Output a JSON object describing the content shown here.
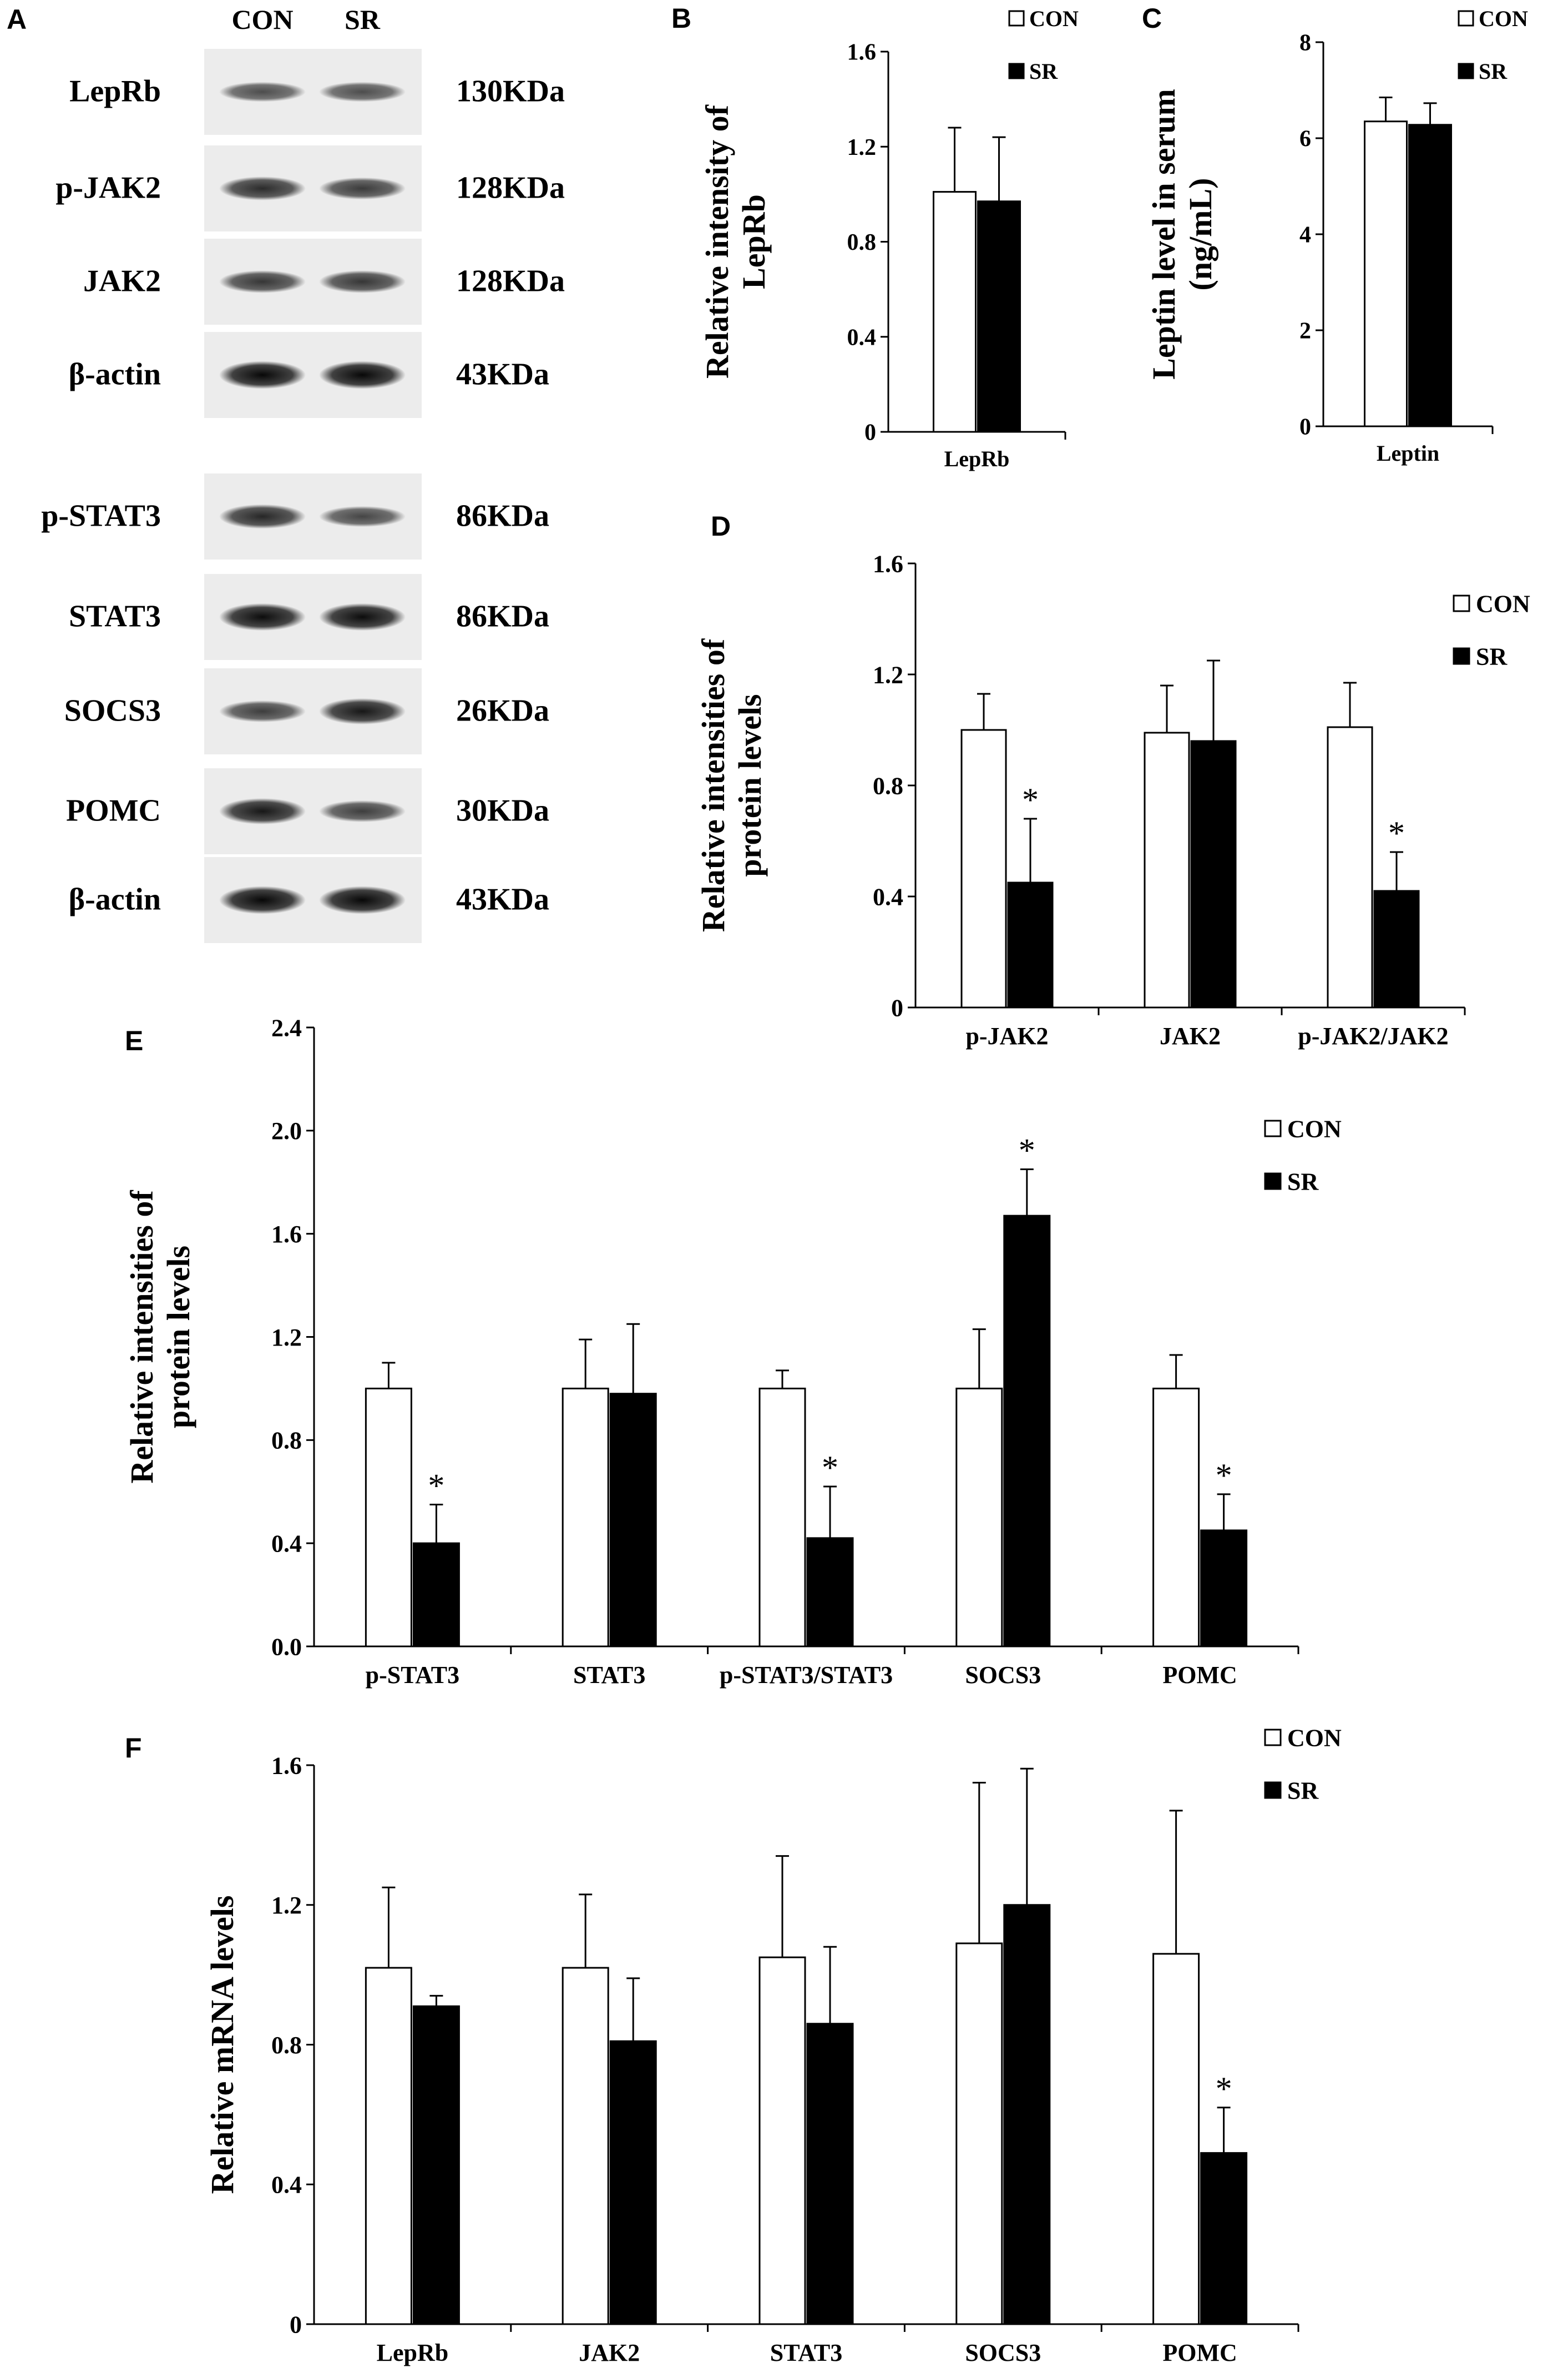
{
  "figure": {
    "panels": {
      "A": {
        "letter": "A",
        "lanes": [
          "CON",
          "SR"
        ],
        "strips": [
          {
            "protein": "LepRb",
            "size": "130KDa",
            "band_intensity": [
              0.5,
              0.5
            ]
          },
          {
            "protein": "p-JAK2",
            "size": "128KDa",
            "band_intensity": [
              0.72,
              0.62
            ]
          },
          {
            "protein": "JAK2",
            "size": "128KDa",
            "band_intensity": [
              0.65,
              0.65
            ]
          },
          {
            "protein": "β-actin",
            "size": "43KDa",
            "band_intensity": [
              0.95,
              0.95
            ]
          },
          {
            "protein": "p-STAT3",
            "size": "86KDa",
            "band_intensity": [
              0.75,
              0.55
            ]
          },
          {
            "protein": "STAT3",
            "size": "86KDa",
            "band_intensity": [
              0.92,
              0.92
            ]
          },
          {
            "protein": "SOCS3",
            "size": "26KDa",
            "band_intensity": [
              0.6,
              0.85
            ]
          },
          {
            "protein": "POMC",
            "size": "30KDa",
            "band_intensity": [
              0.85,
              0.6
            ]
          },
          {
            "protein": "β-actin",
            "size": "43KDa",
            "band_intensity": [
              0.95,
              0.95
            ]
          }
        ]
      }
    }
  },
  "chart_data": [
    {
      "panel": "B",
      "type": "bar",
      "categories": [
        "LepRb"
      ],
      "series": [
        {
          "name": "CON",
          "values": [
            1.01
          ],
          "errors": [
            0.27
          ],
          "fill": "#ffffff"
        },
        {
          "name": "SR",
          "values": [
            0.97
          ],
          "errors": [
            0.27
          ],
          "fill": "#000000"
        }
      ],
      "significant": [
        [
          false,
          false
        ]
      ],
      "ylabel": [
        "Relative intensity of",
        "LepRb"
      ],
      "ylim": [
        0,
        1.6
      ],
      "yticks": [
        "0",
        "0.4",
        "0.8",
        "1.2",
        "1.6"
      ],
      "legend": "top-right"
    },
    {
      "panel": "C",
      "type": "bar",
      "categories": [
        "Leptin"
      ],
      "series": [
        {
          "name": "CON",
          "values": [
            6.35
          ],
          "errors": [
            0.5
          ],
          "fill": "#ffffff"
        },
        {
          "name": "SR",
          "values": [
            6.28
          ],
          "errors": [
            0.45
          ],
          "fill": "#000000"
        }
      ],
      "significant": [
        [
          false,
          false
        ]
      ],
      "ylabel": [
        "Leptin level in serum",
        "(ng/mL)"
      ],
      "ylim": [
        0,
        8
      ],
      "yticks": [
        "0",
        "2",
        "4",
        "6",
        "8"
      ],
      "legend": "top-right"
    },
    {
      "panel": "D",
      "type": "bar",
      "categories": [
        "p-JAK2",
        "JAK2",
        "p-JAK2/JAK2"
      ],
      "series": [
        {
          "name": "CON",
          "values": [
            1.0,
            0.99,
            1.01
          ],
          "errors": [
            0.13,
            0.17,
            0.16
          ],
          "fill": "#ffffff"
        },
        {
          "name": "SR",
          "values": [
            0.45,
            0.96,
            0.42
          ],
          "errors": [
            0.23,
            0.29,
            0.14
          ],
          "fill": "#000000"
        }
      ],
      "significant": [
        [
          false,
          true
        ],
        [
          false,
          false
        ],
        [
          false,
          true
        ]
      ],
      "ylabel": [
        "Relative intensities of",
        "protein levels"
      ],
      "ylim": [
        0,
        1.6
      ],
      "yticks": [
        "0",
        "0.4",
        "0.8",
        "1.2",
        "1.6"
      ],
      "legend": "right"
    },
    {
      "panel": "E",
      "type": "bar",
      "categories": [
        "p-STAT3",
        "STAT3",
        "p-STAT3/STAT3",
        "SOCS3",
        "POMC"
      ],
      "series": [
        {
          "name": "CON",
          "values": [
            1.0,
            1.0,
            1.0,
            1.0,
            1.0
          ],
          "errors": [
            0.1,
            0.19,
            0.07,
            0.23,
            0.13
          ],
          "fill": "#ffffff"
        },
        {
          "name": "SR",
          "values": [
            0.4,
            0.98,
            0.42,
            1.67,
            0.45
          ],
          "errors": [
            0.15,
            0.27,
            0.2,
            0.18,
            0.14
          ],
          "fill": "#000000"
        }
      ],
      "significant": [
        [
          false,
          true
        ],
        [
          false,
          false
        ],
        [
          false,
          true
        ],
        [
          false,
          true
        ],
        [
          false,
          true
        ]
      ],
      "ylabel": [
        "Relative intensities of",
        "protein levels"
      ],
      "ylim": [
        0,
        2.4
      ],
      "yticks": [
        "0.0",
        "0.4",
        "0.8",
        "1.2",
        "1.6",
        "2.0",
        "2.4"
      ],
      "legend": "top-right"
    },
    {
      "panel": "F",
      "type": "bar",
      "categories": [
        "LepRb",
        "JAK2",
        "STAT3",
        "SOCS3",
        "POMC"
      ],
      "series": [
        {
          "name": "CON",
          "values": [
            1.02,
            1.02,
            1.05,
            1.09,
            1.06
          ],
          "errors": [
            0.23,
            0.21,
            0.29,
            0.46,
            0.41
          ],
          "fill": "#ffffff"
        },
        {
          "name": "SR",
          "values": [
            0.91,
            0.81,
            0.86,
            1.2,
            0.49
          ],
          "errors": [
            0.03,
            0.18,
            0.22,
            0.39,
            0.13
          ],
          "fill": "#000000"
        }
      ],
      "significant": [
        [
          false,
          false
        ],
        [
          false,
          false
        ],
        [
          false,
          false
        ],
        [
          false,
          false
        ],
        [
          false,
          true
        ]
      ],
      "ylabel": [
        "Relative mRNA levels"
      ],
      "ylim": [
        0,
        1.6
      ],
      "yticks": [
        "0",
        "0.4",
        "0.8",
        "1.2",
        "1.6"
      ],
      "legend": "top-right"
    }
  ]
}
